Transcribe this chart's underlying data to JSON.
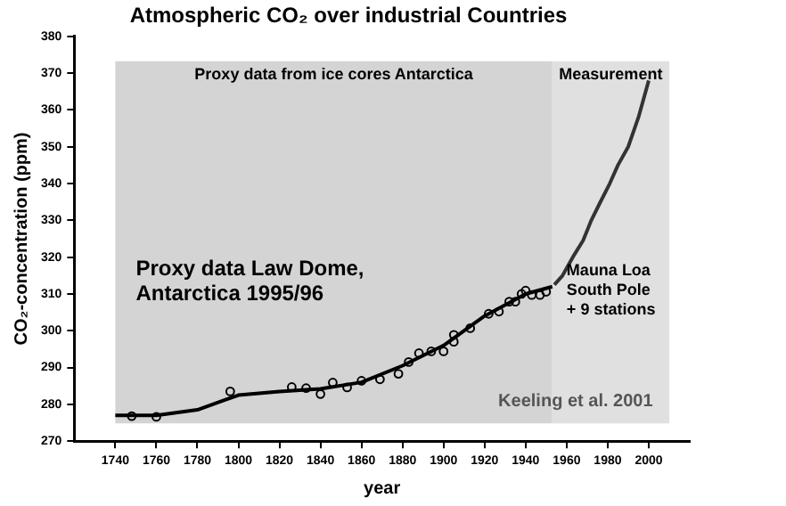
{
  "chart_data": {
    "type": "line",
    "title": "Atmospheric CO₂ over industrial Countries",
    "xlabel": "year",
    "ylabel": "CO₂-concentration (ppm)",
    "xlim": [
      1720,
      2020
    ],
    "xticks": [
      1740,
      1760,
      1780,
      1800,
      1820,
      1840,
      1860,
      1880,
      1900,
      1920,
      1940,
      1960,
      1980,
      2000
    ],
    "ylim": [
      270,
      380
    ],
    "yticks": [
      270,
      280,
      290,
      300,
      310,
      320,
      330,
      340,
      350,
      360,
      370,
      380
    ],
    "grid": false,
    "bands": [
      {
        "axis": "x",
        "from": 1740,
        "to": 1953,
        "label": "Proxy data from ice cores Antarctica",
        "color": "#d4d4d4"
      },
      {
        "axis": "x",
        "from": 1953,
        "to": 2010,
        "label": "Measurement",
        "color": "#e0e0e0"
      }
    ],
    "series": [
      {
        "color": "#000000",
        "x": [
          1740,
          1760,
          1780,
          1800,
          1820,
          1840,
          1860,
          1880,
          1900,
          1920,
          1940,
          1953
        ],
        "values": [
          277,
          277,
          278.5,
          282.5,
          283.5,
          284.2,
          286,
          290.5,
          296,
          304,
          310,
          312
        ]
      },
      {
        "color": "#333333",
        "x": [
          1954,
          1958,
          1963,
          1968,
          1972,
          1976,
          1981,
          1985,
          1990,
          1995,
          2000
        ],
        "values": [
          312.5,
          315,
          320,
          324.5,
          330,
          334.5,
          340,
          345,
          350,
          358,
          368
        ]
      },
      {
        "type": "scatter",
        "color": "#000000",
        "marker": "circle",
        "x": [
          1748,
          1760,
          1796,
          1826,
          1833,
          1840,
          1846,
          1853,
          1860,
          1869,
          1878,
          1883,
          1888,
          1894,
          1900,
          1905,
          1905,
          1913,
          1922,
          1927,
          1932,
          1935,
          1938,
          1940,
          1943,
          1947,
          1950
        ],
        "values": [
          276.8,
          276.6,
          283.5,
          284.7,
          284.4,
          282.8,
          285.9,
          284.6,
          286.4,
          286.8,
          288.3,
          291.5,
          293.9,
          294.4,
          294.4,
          297,
          298.9,
          300.7,
          304.6,
          305.2,
          307.9,
          307.9,
          310,
          310.9,
          309.7,
          309.7,
          310.6
        ]
      }
    ],
    "annotations": [
      "Proxy data Law Dome,\nAntarctica 1995/96",
      "Mauna Loa\nSouth Pole\n+ 9 stations",
      "Keeling et al. 2001"
    ]
  }
}
